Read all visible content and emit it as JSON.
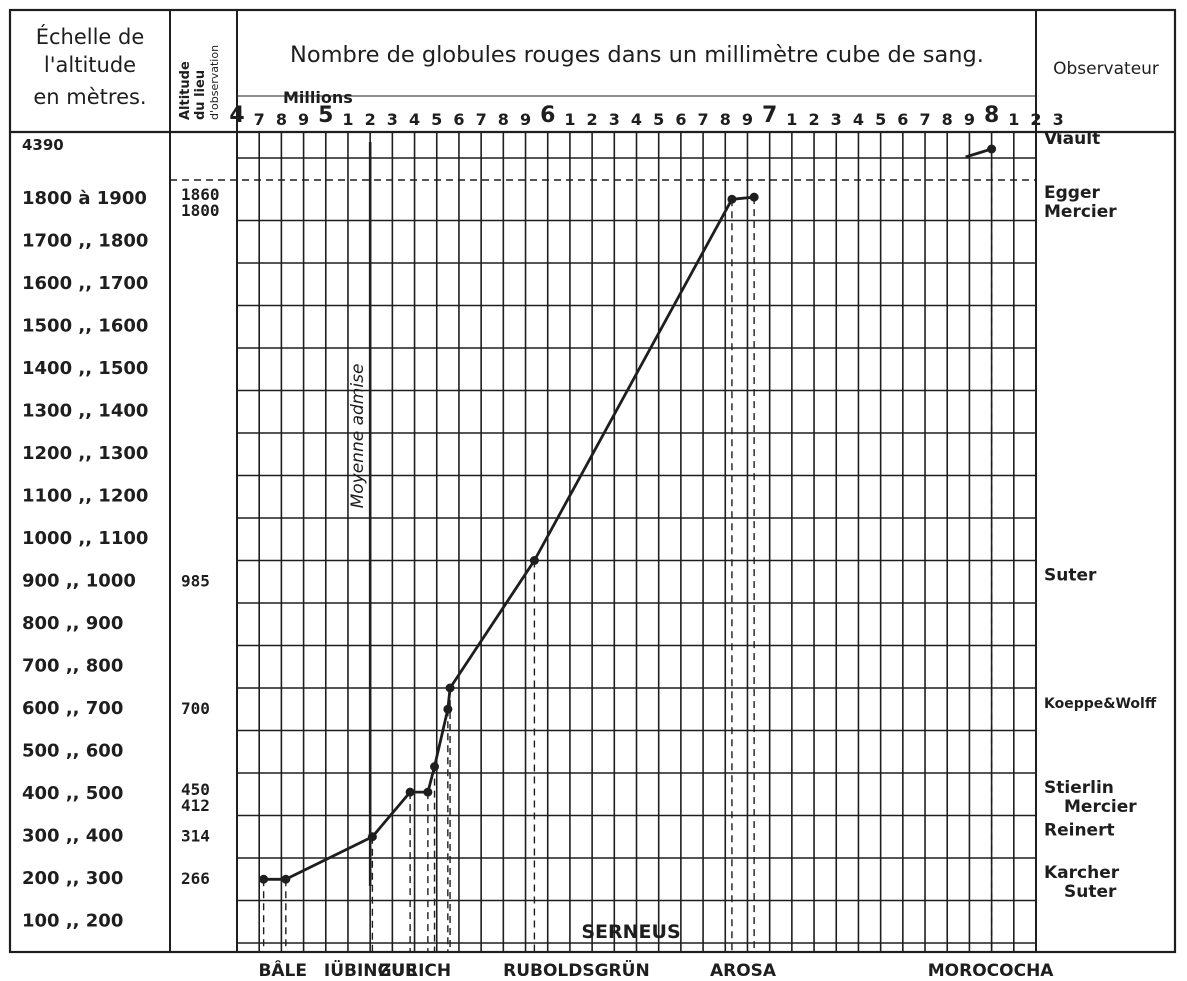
{
  "header": {
    "scale_title": [
      "Échelle de",
      "l'altitude",
      "en  mètres."
    ],
    "altitude_col_title": [
      "Altitude",
      "du lieu",
      "d'observation"
    ],
    "main_title": "Nombre de globules rouges dans un millimètre cube de sang.",
    "observer_col_title": "Observateur",
    "millions_label": "Millions"
  },
  "top_ticks": [
    {
      "t": "4",
      "big": true
    },
    {
      "t": "7"
    },
    {
      "t": "8"
    },
    {
      "t": "9"
    },
    {
      "t": "5",
      "big": true
    },
    {
      "t": "1"
    },
    {
      "t": "2"
    },
    {
      "t": "3"
    },
    {
      "t": "4"
    },
    {
      "t": "5"
    },
    {
      "t": "6"
    },
    {
      "t": "7"
    },
    {
      "t": "8"
    },
    {
      "t": "9"
    },
    {
      "t": "6",
      "big": true
    },
    {
      "t": "1"
    },
    {
      "t": "2"
    },
    {
      "t": "3"
    },
    {
      "t": "4"
    },
    {
      "t": "5"
    },
    {
      "t": "6"
    },
    {
      "t": "7"
    },
    {
      "t": "8"
    },
    {
      "t": "9"
    },
    {
      "t": "7",
      "big": true
    },
    {
      "t": "1"
    },
    {
      "t": "2"
    },
    {
      "t": "3"
    },
    {
      "t": "4"
    },
    {
      "t": "5"
    },
    {
      "t": "6"
    },
    {
      "t": "7"
    },
    {
      "t": "8"
    },
    {
      "t": "9"
    },
    {
      "t": "8",
      "big": true
    },
    {
      "t": "1"
    },
    {
      "t": "2"
    },
    {
      "t": "3"
    }
  ],
  "rows": [
    {
      "scale": "4390",
      "altitude": "",
      "observer": [
        "Viault"
      ]
    },
    {
      "scale": "1800 à 1900",
      "altitude": "1860",
      "altitude2": "1800",
      "observer": [
        "Egger",
        "Mercier"
      ]
    },
    {
      "scale": "1700 ,, 1800",
      "altitude": "",
      "observer": []
    },
    {
      "scale": "1600 ,, 1700",
      "altitude": "",
      "observer": []
    },
    {
      "scale": "1500 ,, 1600",
      "altitude": "",
      "observer": []
    },
    {
      "scale": "1400 ,, 1500",
      "altitude": "",
      "observer": []
    },
    {
      "scale": "1300 ,, 1400",
      "altitude": "",
      "observer": []
    },
    {
      "scale": "1200 ,, 1300",
      "altitude": "",
      "observer": []
    },
    {
      "scale": "1100 ,, 1200",
      "altitude": "",
      "observer": []
    },
    {
      "scale": "1000 ,, 1100",
      "altitude": "",
      "observer": []
    },
    {
      "scale": "900 ,, 1000",
      "altitude": "985",
      "observer": [
        "Suter"
      ]
    },
    {
      "scale": "800 ,, 900",
      "altitude": "",
      "observer": []
    },
    {
      "scale": "700 ,, 800",
      "altitude": "",
      "observer": []
    },
    {
      "scale": "600 ,, 700",
      "altitude": "700",
      "observer": [
        "Koeppe&Wolff"
      ]
    },
    {
      "scale": "500 ,, 600",
      "altitude": "",
      "observer": []
    },
    {
      "scale": "400 ,, 500",
      "altitude": "450",
      "altitude2": "412",
      "observer": [
        "Stierlin",
        "Mercier"
      ]
    },
    {
      "scale": "300 ,, 400",
      "altitude": "314",
      "observer": [
        "Reinert"
      ]
    },
    {
      "scale": "200 ,, 300",
      "altitude": "266",
      "observer": [
        "Karcher",
        "Suter"
      ]
    },
    {
      "scale": "100 ,, 200",
      "altitude": "",
      "observer": []
    }
  ],
  "annotations": {
    "mean_line_label": "Moyenne admise",
    "serneus_label": "SERNEUS"
  },
  "chart_data": {
    "type": "line",
    "title": "Nombre de globules rouges dans un millimètre cube de sang.",
    "xlabel": "Millions",
    "ylabel": "Échelle de l'altitude en mètres.",
    "x_unit": "millions of red blood cells per mm³",
    "xlim": [
      4.7,
      8.3
    ],
    "grid": true,
    "mean_admitted": 5.3,
    "series": [
      {
        "values": [
          {
            "place": "BÂLE",
            "altitude": 266,
            "x": 4.82,
            "y": 250
          },
          {
            "place": "",
            "altitude": 266,
            "x": 4.92,
            "y": 250
          },
          {
            "place": "IÜBINGUE",
            "altitude": 314,
            "x": 5.31,
            "y": 350
          },
          {
            "place": "ZURICH",
            "altitude": 412,
            "x": 5.48,
            "y": 455
          },
          {
            "place": "",
            "altitude": 412,
            "x": 5.56,
            "y": 455
          },
          {
            "place": "",
            "altitude": 450,
            "x": 5.59,
            "y": 515
          },
          {
            "place": "",
            "altitude": 700,
            "x": 5.65,
            "y": 650
          },
          {
            "place": "",
            "altitude": 700,
            "x": 5.66,
            "y": 700
          },
          {
            "place": "RUBOLDSGRÜN",
            "altitude": 985,
            "x": 6.04,
            "y": 1000
          },
          {
            "place": "AROSA",
            "altitude": 1800,
            "x": 6.93,
            "y": 1850
          },
          {
            "place": "",
            "altitude": 1860,
            "x": 7.03,
            "y": 1855
          }
        ]
      }
    ],
    "extra_point": {
      "place": "MOROCOCHA",
      "altitude": 4390,
      "x": 8.1
    },
    "x_place_labels": [
      "BÂLE",
      "IÜBINGUE",
      "ZURICH",
      "RUBOLDSGRÜN",
      "AROSA",
      "MOROCOCHA"
    ],
    "region_label": "SERNEUS"
  }
}
